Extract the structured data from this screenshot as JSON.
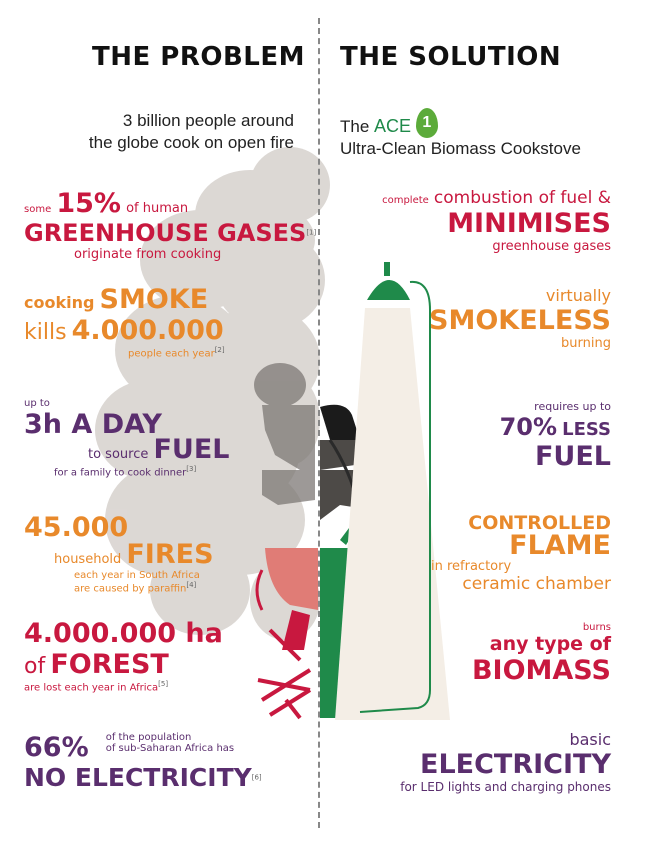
{
  "problem": {
    "heading": "THE PROBLEM",
    "intro_line1": "3 billion people around",
    "intro_line2": "the globe cook on open fire",
    "greenhouse": {
      "pre": "some",
      "pct": "15%",
      "mid": "of human",
      "big": "GREENHOUSE GASES",
      "ref": "[1]",
      "post": "originate from cooking"
    },
    "smoke": {
      "pre": "cooking",
      "big1": "SMOKE",
      "kills": "kills",
      "big2": "4.000.000",
      "post": "people each year",
      "ref": "[2]"
    },
    "fuel": {
      "pre": "up to",
      "big1": "3h A DAY",
      "to": "to source",
      "big2": "FUEL",
      "post": "for a family to cook dinner",
      "ref": "[3]"
    },
    "fires": {
      "num": "45.000",
      "pre": "household",
      "big": "FIRES",
      "post1": "each year in South Africa",
      "post2": "are caused by paraffin",
      "ref": "[4]"
    },
    "forest": {
      "big1": "4.000.000 ha",
      "of": "of",
      "big2": "FOREST",
      "post": "are lost each year in Africa",
      "ref": "[5]"
    },
    "electricity": {
      "pct": "66%",
      "pre1": "of the population",
      "pre2": "of sub-Saharan Africa has",
      "big": "NO ELECTRICITY",
      "ref": "[6]"
    }
  },
  "solution": {
    "heading": "THE SOLUTION",
    "brand_the": "The",
    "brand_ace": "ACE",
    "brand_num": "1",
    "tagline": "Ultra-Clean Biomass Cookstove",
    "combustion": {
      "pre": "complete",
      "mid": "combustion of fuel &",
      "big": "MINIMISES",
      "post": "greenhouse gases"
    },
    "smokeless": {
      "pre": "virtually",
      "big": "SMOKELESS",
      "post": "burning"
    },
    "fuel": {
      "pct": "70%",
      "pre": "requires up to",
      "less": "LESS",
      "big": "FUEL"
    },
    "flame": {
      "big1": "CONTROLLED",
      "big2": "FLAME",
      "pre": "in refractory",
      "post": "ceramic chamber"
    },
    "biomass": {
      "pre": "burns",
      "mid": "any type of",
      "big": "BIOMASS"
    },
    "electricity": {
      "pre": "basic",
      "big": "ELECTRICITY",
      "post": "for LED lights and charging phones"
    }
  },
  "colors": {
    "red": "#c8183f",
    "orange": "#e8892b",
    "purple": "#5a2e6e",
    "green": "#1f8a4a",
    "smoke": "#d9d4d0",
    "stove_red": "#e07c76"
  }
}
